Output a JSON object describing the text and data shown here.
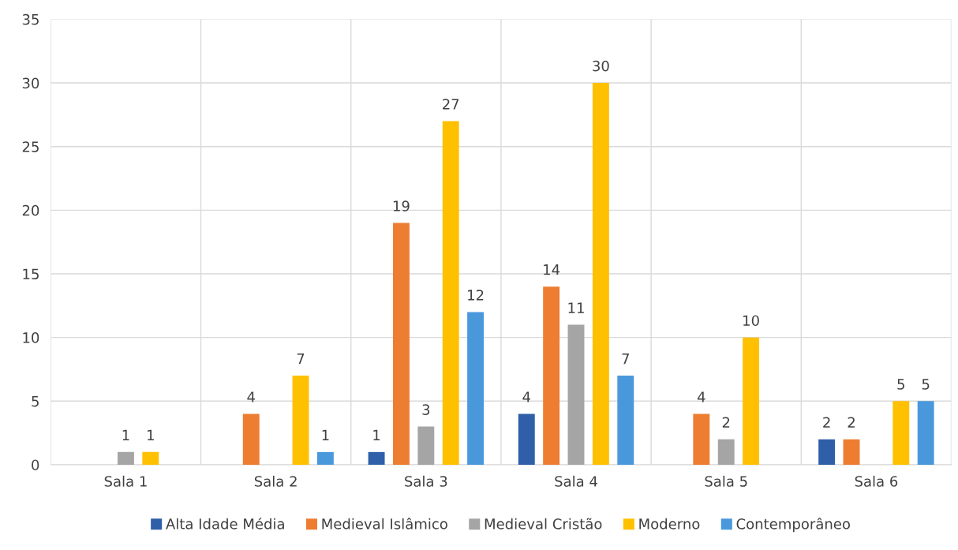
{
  "chart_data": {
    "type": "bar",
    "categories": [
      "Sala 1",
      "Sala 2",
      "Sala 3",
      "Sala 4",
      "Sala 5",
      "Sala 6"
    ],
    "series": [
      {
        "name": "Alta Idade Média",
        "color": "#2f5fa8",
        "values": [
          null,
          null,
          1,
          4,
          null,
          2
        ]
      },
      {
        "name": "Medieval Islâmico",
        "color": "#ed7d31",
        "values": [
          null,
          4,
          19,
          14,
          4,
          2
        ]
      },
      {
        "name": "Medieval Cristão",
        "color": "#a5a5a5",
        "values": [
          1,
          null,
          3,
          11,
          2,
          null
        ]
      },
      {
        "name": "Moderno",
        "color": "#ffc000",
        "values": [
          1,
          7,
          27,
          30,
          10,
          5
        ]
      },
      {
        "name": "Contemporâneo",
        "color": "#4a98dc",
        "values": [
          null,
          1,
          12,
          7,
          null,
          5
        ]
      }
    ],
    "ylim": [
      0,
      35
    ],
    "yticks": [
      0,
      5,
      10,
      15,
      20,
      25,
      30,
      35
    ],
    "grid": true,
    "legend": "bottom",
    "data_labels": true
  }
}
